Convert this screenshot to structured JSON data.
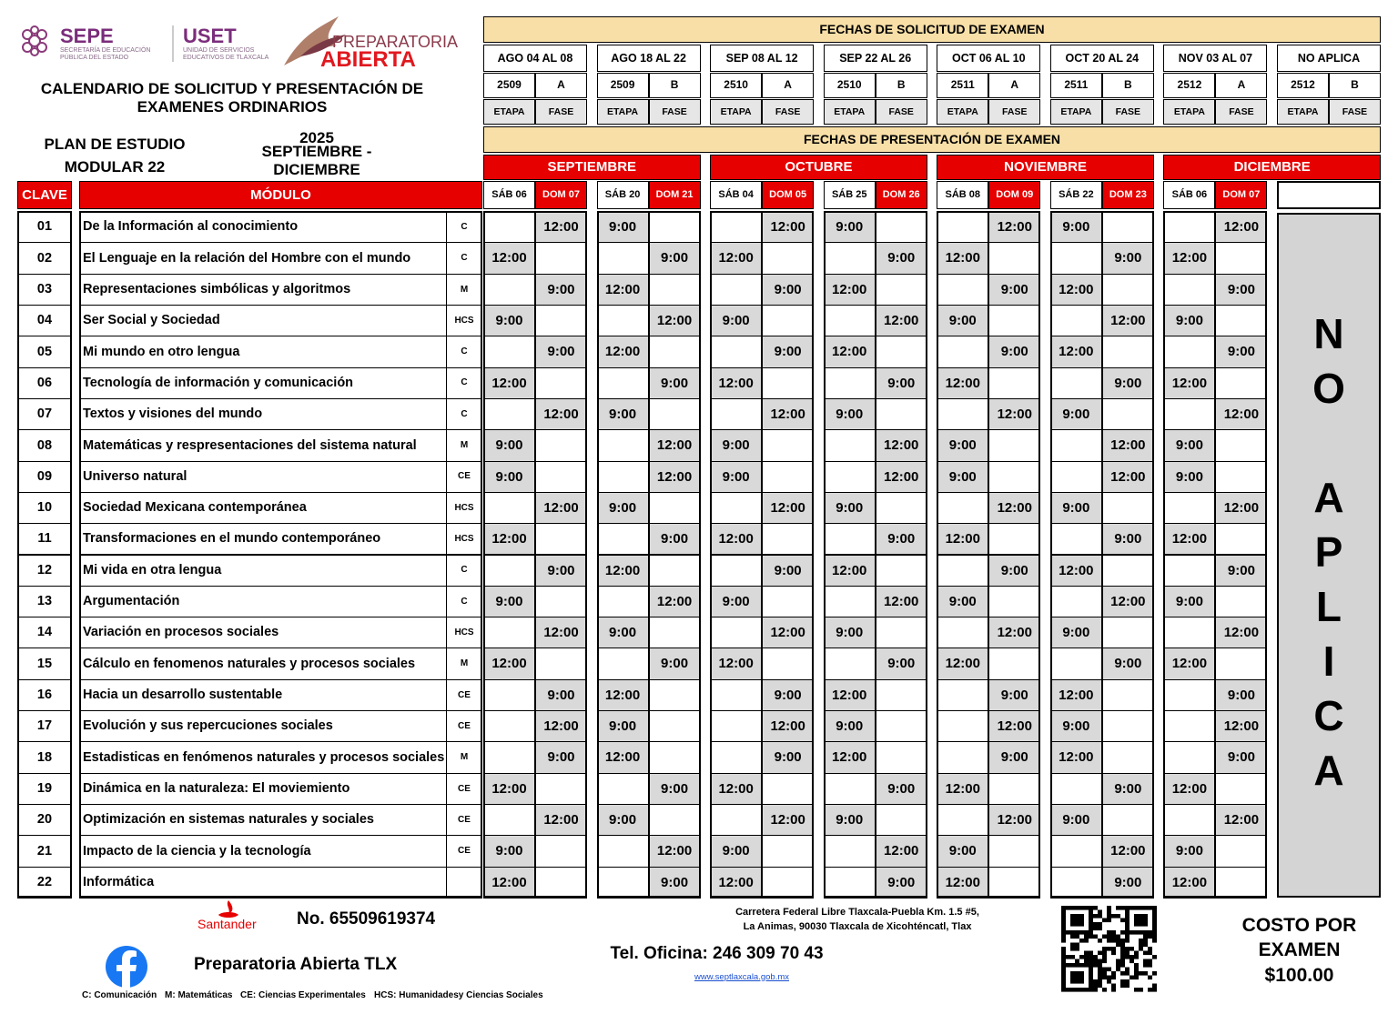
{
  "header": {
    "logos": {
      "sepe": "SEPE",
      "sepe_sub": "SECRETARÍA DE EDUCACIÓN PÚBLICA DEL ESTADO",
      "uset": "USET",
      "uset_sub": "UNIDAD DE SERVICIOS EDUCATIVOS DE TLAXCALA",
      "prepa_1": "PREPARATORIA",
      "prepa_2": "ABIERTA"
    },
    "title": "CALENDARIO DE SOLICITUD Y PRESENTACIÓN DE EXAMENES ORDINARIOS",
    "plan": "PLAN DE ESTUDIO MODULAR 22",
    "year": "2025",
    "period": "SEPTIEMBRE - DICIEMBRE"
  },
  "request": {
    "title": "FECHAS DE SOLICITUD DE EXAMEN",
    "etapa_label": "ETAPA",
    "fase_label": "FASE",
    "periods": [
      {
        "label": "AGO 04 AL 08",
        "etapa": "2509",
        "fase": "A"
      },
      {
        "label": "AGO 18 AL 22",
        "etapa": "2509",
        "fase": "B"
      },
      {
        "label": "SEP 08 AL 12",
        "etapa": "2510",
        "fase": "A"
      },
      {
        "label": "SEP 22 AL 26",
        "etapa": "2510",
        "fase": "B"
      },
      {
        "label": "OCT 06 AL 10",
        "etapa": "2511",
        "fase": "A"
      },
      {
        "label": "OCT 20 AL 24",
        "etapa": "2511",
        "fase": "B"
      },
      {
        "label": "NOV 03 AL 07",
        "etapa": "2512",
        "fase": "A"
      },
      {
        "label": "NO APLICA",
        "etapa": "2512",
        "fase": "B"
      }
    ]
  },
  "presentation": {
    "title": "FECHAS DE PRESENTACIÓN DE EXAMEN",
    "months": [
      "SEPTIEMBRE",
      "OCTUBRE",
      "NOVIEMBRE",
      "DICIEMBRE"
    ],
    "days": [
      [
        "SÁB 06",
        "DOM 07"
      ],
      [
        "SÁB 20",
        "DOM 21"
      ],
      [
        "SÁB 04",
        "DOM 05"
      ],
      [
        "SÁB 25",
        "DOM 26"
      ],
      [
        "SÁB 08",
        "DOM 09"
      ],
      [
        "SÁB 22",
        "DOM 23"
      ],
      [
        "SÁB 06",
        "DOM 07"
      ]
    ]
  },
  "table": {
    "headers": {
      "clave": "CLAVE",
      "modulo": "MÓDULO"
    },
    "not_applicable": "NO APLICA",
    "rows": [
      {
        "clave": "01",
        "modulo": "De la Información al conocimiento",
        "area": "C",
        "times": [
          null,
          "12:00",
          "9:00",
          null,
          null,
          "12:00",
          "9:00",
          null,
          null,
          "12:00",
          "9:00",
          null,
          null,
          "12:00"
        ]
      },
      {
        "clave": "02",
        "modulo": "El Lenguaje en la relación del Hombre con el mundo",
        "area": "C",
        "times": [
          "12:00",
          null,
          null,
          "9:00",
          "12:00",
          null,
          null,
          "9:00",
          "12:00",
          null,
          null,
          "9:00",
          "12:00",
          null
        ]
      },
      {
        "clave": "03",
        "modulo": "Representaciones simbólicas y algoritmos",
        "area": "M",
        "times": [
          null,
          "9:00",
          "12:00",
          null,
          null,
          "9:00",
          "12:00",
          null,
          null,
          "9:00",
          "12:00",
          null,
          null,
          "9:00"
        ]
      },
      {
        "clave": "04",
        "modulo": "Ser Social y Sociedad",
        "area": "HCS",
        "times": [
          "9:00",
          null,
          null,
          "12:00",
          "9:00",
          null,
          null,
          "12:00",
          "9:00",
          null,
          null,
          "12:00",
          "9:00",
          null
        ]
      },
      {
        "clave": "05",
        "modulo": "Mi mundo en otro lengua",
        "area": "C",
        "times": [
          null,
          "9:00",
          "12:00",
          null,
          null,
          "9:00",
          "12:00",
          null,
          null,
          "9:00",
          "12:00",
          null,
          null,
          "9:00"
        ]
      },
      {
        "clave": "06",
        "modulo": "Tecnología de información y comunicación",
        "area": "C",
        "times": [
          "12:00",
          null,
          null,
          "9:00",
          "12:00",
          null,
          null,
          "9:00",
          "12:00",
          null,
          null,
          "9:00",
          "12:00",
          null
        ]
      },
      {
        "clave": "07",
        "modulo": "Textos y visiones del mundo",
        "area": "C",
        "times": [
          null,
          "12:00",
          "9:00",
          null,
          null,
          "12:00",
          "9:00",
          null,
          null,
          "12:00",
          "9:00",
          null,
          null,
          "12:00"
        ]
      },
      {
        "clave": "08",
        "modulo": "Matemáticas y respresentaciones del sistema natural",
        "area": "M",
        "times": [
          "9:00",
          null,
          null,
          "12:00",
          "9:00",
          null,
          null,
          "12:00",
          "9:00",
          null,
          null,
          "12:00",
          "9:00",
          null
        ]
      },
      {
        "clave": "09",
        "modulo": "Universo natural",
        "area": "CE",
        "times": [
          "9:00",
          null,
          null,
          "12:00",
          "9:00",
          null,
          null,
          "12:00",
          "9:00",
          null,
          null,
          "12:00",
          "9:00",
          null
        ]
      },
      {
        "clave": "10",
        "modulo": "Sociedad Mexicana contemporánea",
        "area": "HCS",
        "times": [
          null,
          "12:00",
          "9:00",
          null,
          null,
          "12:00",
          "9:00",
          null,
          null,
          "12:00",
          "9:00",
          null,
          null,
          "12:00"
        ]
      },
      {
        "clave": "11",
        "modulo": "Transformaciones en el mundo contemporáneo",
        "area": "HCS",
        "times": [
          "12:00",
          null,
          null,
          "9:00",
          "12:00",
          null,
          null,
          "9:00",
          "12:00",
          null,
          null,
          "9:00",
          "12:00",
          null
        ]
      },
      {
        "clave": "12",
        "modulo": "Mi vida en otra lengua",
        "area": "C",
        "times": [
          null,
          "9:00",
          "12:00",
          null,
          null,
          "9:00",
          "12:00",
          null,
          null,
          "9:00",
          "12:00",
          null,
          null,
          "9:00"
        ]
      },
      {
        "clave": "13",
        "modulo": "Argumentación",
        "area": "C",
        "times": [
          "9:00",
          null,
          null,
          "12:00",
          "9:00",
          null,
          null,
          "12:00",
          "9:00",
          null,
          null,
          "12:00",
          "9:00",
          null
        ]
      },
      {
        "clave": "14",
        "modulo": "Variación en procesos sociales",
        "area": "HCS",
        "times": [
          null,
          "12:00",
          "9:00",
          null,
          null,
          "12:00",
          "9:00",
          null,
          null,
          "12:00",
          "9:00",
          null,
          null,
          "12:00"
        ]
      },
      {
        "clave": "15",
        "modulo": "Cálculo en fenomenos naturales y procesos sociales",
        "area": "M",
        "times": [
          "12:00",
          null,
          null,
          "9:00",
          "12:00",
          null,
          null,
          "9:00",
          "12:00",
          null,
          null,
          "9:00",
          "12:00",
          null
        ]
      },
      {
        "clave": "16",
        "modulo": "Hacia un desarrollo sustentable",
        "area": "CE",
        "times": [
          null,
          "9:00",
          "12:00",
          null,
          null,
          "9:00",
          "12:00",
          null,
          null,
          "9:00",
          "12:00",
          null,
          null,
          "9:00"
        ]
      },
      {
        "clave": "17",
        "modulo": "Evolución y sus repercuciones sociales",
        "area": "CE",
        "times": [
          null,
          "12:00",
          "9:00",
          null,
          null,
          "12:00",
          "9:00",
          null,
          null,
          "12:00",
          "9:00",
          null,
          null,
          "12:00"
        ]
      },
      {
        "clave": "18",
        "modulo": "Estadisticas en fenómenos naturales y procesos sociales",
        "area": "M",
        "times": [
          null,
          "9:00",
          "12:00",
          null,
          null,
          "9:00",
          "12:00",
          null,
          null,
          "9:00",
          "12:00",
          null,
          null,
          "9:00"
        ]
      },
      {
        "clave": "19",
        "modulo": "Dinámica en la naturaleza: El moviemiento",
        "area": "CE",
        "times": [
          "12:00",
          null,
          null,
          "9:00",
          "12:00",
          null,
          null,
          "9:00",
          "12:00",
          null,
          null,
          "9:00",
          "12:00",
          null
        ]
      },
      {
        "clave": "20",
        "modulo": "Optimización en sistemas naturales y sociales",
        "area": "CE",
        "times": [
          null,
          "12:00",
          "9:00",
          null,
          null,
          "12:00",
          "9:00",
          null,
          null,
          "12:00",
          "9:00",
          null,
          null,
          "12:00"
        ]
      },
      {
        "clave": "21",
        "modulo": "Impacto de la ciencia y la tecnología",
        "area": "CE",
        "times": [
          "9:00",
          null,
          null,
          "12:00",
          "9:00",
          null,
          null,
          "12:00",
          "9:00",
          null,
          null,
          "12:00",
          "9:00",
          null
        ]
      },
      {
        "clave": "22",
        "modulo": "Informática",
        "area": null,
        "times": [
          "12:00",
          null,
          null,
          "9:00",
          "12:00",
          null,
          null,
          "9:00",
          "12:00",
          null,
          null,
          "9:00",
          "12:00",
          null
        ]
      }
    ]
  },
  "footer": {
    "bank": "Santander",
    "account": "No. 65509619374",
    "facebook": "Preparatoria Abierta TLX",
    "address_1": "Carretera Federal Libre Tlaxcala-Puebla Km. 1.5 #5,",
    "address_2": "La Animas, 90030 Tlaxcala de Xicohténcatl, Tlax",
    "phone": "Tel. Oficina: 246 309 70 43",
    "url": "www.septlaxcala.gob.mx",
    "cost_label": "COSTO POR EXAMEN",
    "cost": "$100.00",
    "legend": [
      "C: Comunicación",
      "M: Matemáticas",
      "CE: Ciencias Experimentales",
      "HCS: Humanidadesy Ciencias Sociales"
    ]
  }
}
